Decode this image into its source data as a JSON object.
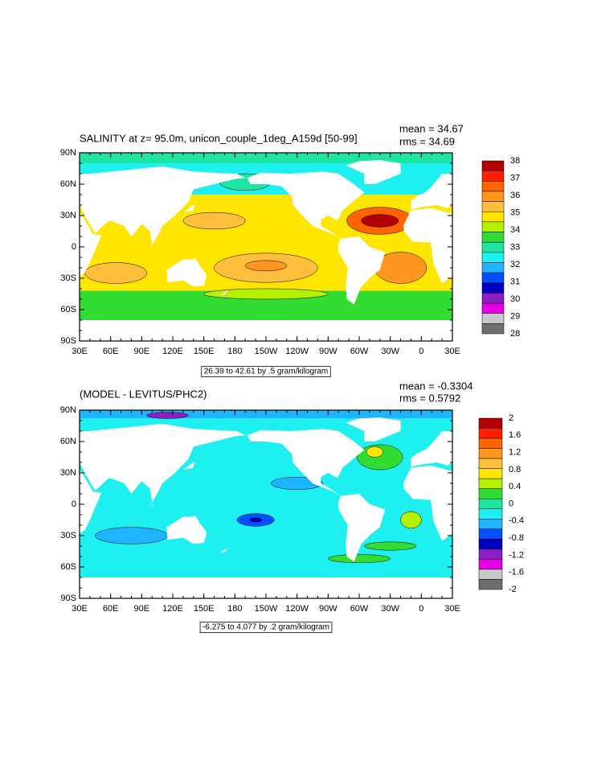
{
  "panels": [
    {
      "title": "SALINITY at z=  95.0m, unicon_couple_1deg_A159d [50-99]",
      "mean": "mean = 34.67",
      "rms": "rms = 34.69",
      "info": "26.39 to 42.61 by .5 gram/kilogram",
      "colorbar": [
        "38",
        "37",
        "36",
        "35",
        "34",
        "33",
        "32",
        "31",
        "30",
        "29",
        "28"
      ]
    },
    {
      "title": "(MODEL - LEVITUS/PHC2)",
      "mean": "mean = -0.3304",
      "rms": "rms = 0.5792",
      "info": "-6.275 to 4.077 by .2 gram/kilogram",
      "colorbar": [
        "2",
        "1.6",
        "1.2",
        "0.8",
        "0.4",
        "0",
        "-0.4",
        "-0.8",
        "-1.2",
        "-1.6",
        "-2"
      ]
    }
  ],
  "x_labels": [
    "30E",
    "60E",
    "90E",
    "120E",
    "150E",
    "180",
    "150W",
    "120W",
    "90W",
    "60W",
    "30W",
    "0",
    "30E"
  ],
  "y_labels": [
    "90N",
    "60N",
    "30N",
    "0",
    "30S",
    "60S",
    "90S"
  ],
  "palette": [
    "#b40000",
    "#ff1e00",
    "#ff6400",
    "#ff9620",
    "#ffbe3c",
    "#ffe600",
    "#b4f000",
    "#32dc32",
    "#1ee6a0",
    "#1ef0f0",
    "#1eb4ff",
    "#0050ff",
    "#0000c0",
    "#8c1ec8",
    "#e600e6",
    "#c8c8c8",
    "#6e6e6e"
  ]
}
